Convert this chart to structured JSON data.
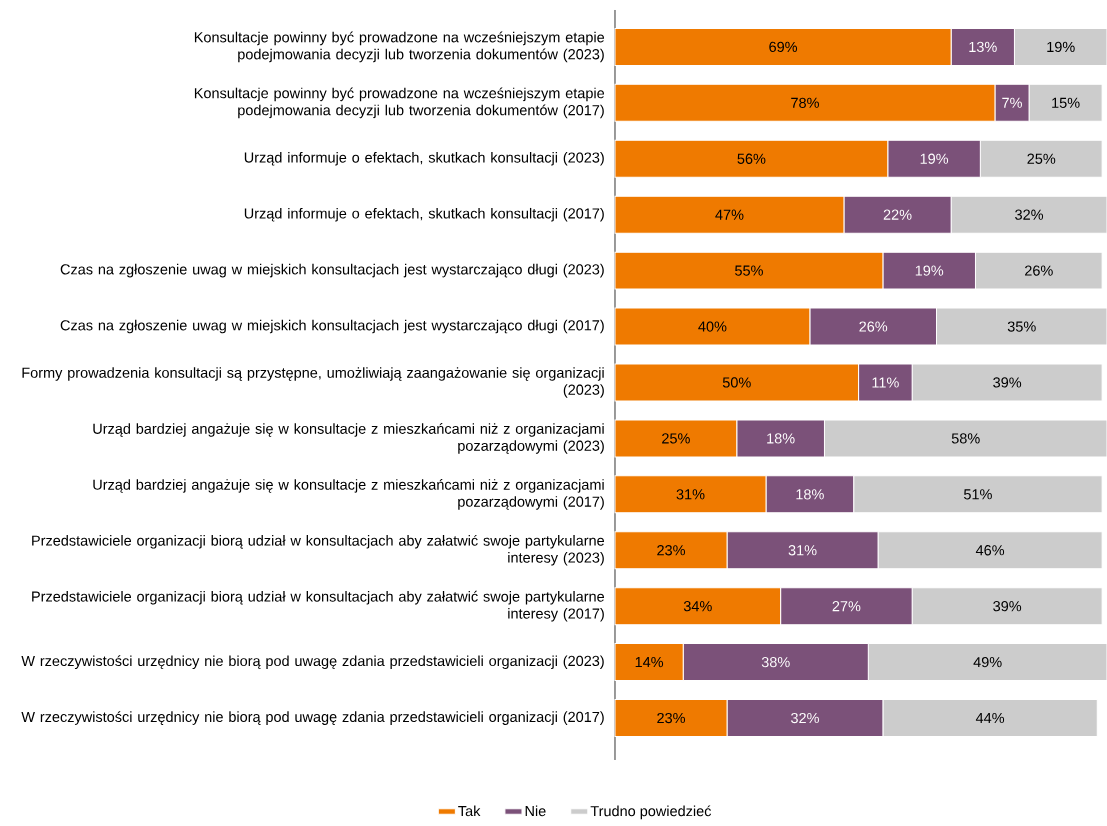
{
  "chart_data": {
    "type": "bar",
    "orientation": "horizontal",
    "stacked": true,
    "legend": "bottom",
    "categories": [
      "Konsultacje powinny być prowadzone na wcześniejszym etapie podejmowania decyzji lub tworzenia dokumentów (2023)",
      "Konsultacje powinny być prowadzone na wcześniejszym etapie podejmowania decyzji lub tworzenia dokumentów (2017)",
      "Urząd informuje o efektach, skutkach konsultacji (2023)",
      "Urząd informuje o efektach, skutkach konsultacji (2017)",
      "Czas na zgłoszenie uwag w miejskich konsultacjach jest wystarczająco długi (2023)",
      "Czas na zgłoszenie uwag w miejskich konsultacjach jest wystarczająco długi (2017)",
      "Formy prowadzenia konsultacji są przystępne, umożliwiają zaangażowanie się organizacji (2023)",
      "Urząd bardziej angażuje się w konsultacje z mieszkańcami niż z organizacjami pozarządowymi (2023)",
      "Urząd bardziej angażuje się w konsultacje z mieszkańcami niż z organizacjami pozarządowymi (2017)",
      "Przedstawiciele organizacji biorą udział w konsultacjach aby załatwić swoje partykularne interesy (2023)",
      "Przedstawiciele organizacji biorą udział w konsultacjach aby załatwić swoje partykularne interesy (2017)",
      "W rzeczywistości urzędnicy nie biorą pod uwagę zdania przedstawicieli organizacji (2023)",
      "W rzeczywistości urzędnicy nie biorą pod uwagę zdania przedstawicieli organizacji (2017)"
    ],
    "series": [
      {
        "name": "Tak",
        "color": "#ef7a00",
        "values": [
          69,
          78,
          56,
          47,
          55,
          40,
          50,
          25,
          31,
          23,
          34,
          14,
          23
        ],
        "value_labels": [
          "69%",
          "78%",
          "56%",
          "47%",
          "55%",
          "40%",
          "50%",
          "25%",
          "31%",
          "23%",
          "34%",
          "14%",
          "23%"
        ]
      },
      {
        "name": "Nie",
        "color": "#7b5179",
        "values": [
          13,
          7,
          19,
          22,
          19,
          26,
          11,
          18,
          18,
          31,
          27,
          38,
          32
        ],
        "value_labels": [
          "13%",
          "7%",
          "19%",
          "22%",
          "19%",
          "26%",
          "11%",
          "18%",
          "18%",
          "31%",
          "27%",
          "38%",
          "32%"
        ]
      },
      {
        "name": "Trudno powiedzieć",
        "color": "#cccccc",
        "values": [
          19,
          15,
          25,
          32,
          26,
          35,
          39,
          58,
          51,
          46,
          39,
          49,
          44
        ],
        "value_labels": [
          "19%",
          "15%",
          "25%",
          "32%",
          "26%",
          "35%",
          "39%",
          "58%",
          "51%",
          "46%",
          "39%",
          "49%",
          "44%"
        ]
      }
    ]
  }
}
